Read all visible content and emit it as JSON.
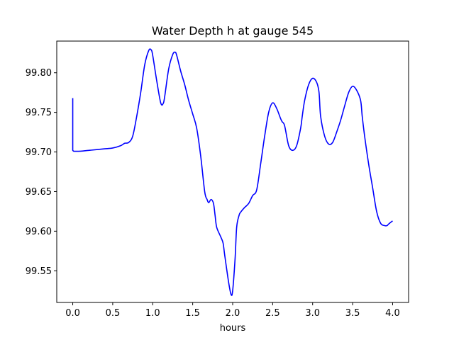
{
  "chart_data": {
    "type": "line",
    "title": "Water Depth h at gauge 545",
    "xlabel": "hours",
    "ylabel": "",
    "xlim": [
      -0.2,
      4.2
    ],
    "ylim": [
      99.51,
      99.84
    ],
    "x_ticks": [
      0.0,
      0.5,
      1.0,
      1.5,
      2.0,
      2.5,
      3.0,
      3.5,
      4.0
    ],
    "x_tick_labels": [
      "0.0",
      "0.5",
      "1.0",
      "1.5",
      "2.0",
      "2.5",
      "3.0",
      "3.5",
      "4.0"
    ],
    "y_ticks": [
      99.55,
      99.6,
      99.65,
      99.7,
      99.75,
      99.8
    ],
    "y_tick_labels": [
      "99.55",
      "99.60",
      "99.65",
      "99.70",
      "99.75",
      "99.80"
    ],
    "grid": false,
    "series": [
      {
        "color": "#0000ff",
        "x": [
          0.0,
          0.0,
          0.01,
          0.1,
          0.2,
          0.3,
          0.4,
          0.5,
          0.6,
          0.65,
          0.7,
          0.75,
          0.8,
          0.85,
          0.9,
          0.95,
          0.98,
          1.0,
          1.05,
          1.1,
          1.13,
          1.15,
          1.2,
          1.25,
          1.28,
          1.3,
          1.35,
          1.4,
          1.45,
          1.5,
          1.55,
          1.6,
          1.65,
          1.68,
          1.7,
          1.73,
          1.76,
          1.78,
          1.8,
          1.85,
          1.88,
          1.9,
          1.95,
          1.98,
          2.0,
          2.03,
          2.05,
          2.08,
          2.1,
          2.15,
          2.2,
          2.25,
          2.3,
          2.35,
          2.4,
          2.45,
          2.5,
          2.55,
          2.6,
          2.62,
          2.65,
          2.7,
          2.75,
          2.8,
          2.85,
          2.87,
          2.9,
          2.95,
          3.0,
          3.05,
          3.08,
          3.1,
          3.15,
          3.2,
          3.25,
          3.3,
          3.35,
          3.4,
          3.45,
          3.5,
          3.55,
          3.6,
          3.62,
          3.65,
          3.7,
          3.75,
          3.8,
          3.85,
          3.9,
          3.93,
          3.95,
          4.0
        ],
        "y": [
          99.768,
          99.702,
          99.701,
          99.701,
          99.702,
          99.703,
          99.704,
          99.705,
          99.708,
          99.711,
          99.712,
          99.72,
          99.745,
          99.775,
          99.81,
          99.828,
          99.829,
          99.822,
          99.79,
          99.762,
          99.761,
          99.77,
          99.805,
          99.823,
          99.826,
          99.822,
          99.802,
          99.785,
          99.765,
          99.748,
          99.73,
          99.695,
          99.65,
          99.64,
          99.636,
          99.64,
          99.635,
          99.62,
          99.605,
          99.593,
          99.585,
          99.57,
          99.535,
          99.52,
          99.525,
          99.565,
          99.605,
          99.62,
          99.624,
          99.63,
          99.635,
          99.645,
          99.652,
          99.685,
          99.72,
          99.75,
          99.762,
          99.755,
          99.742,
          99.738,
          99.733,
          99.708,
          99.702,
          99.708,
          99.73,
          99.745,
          99.765,
          99.785,
          99.793,
          99.788,
          99.775,
          99.745,
          99.72,
          99.71,
          99.712,
          99.725,
          99.74,
          99.758,
          99.775,
          99.783,
          99.778,
          99.765,
          99.745,
          99.72,
          99.685,
          99.655,
          99.625,
          99.61,
          99.607,
          99.607,
          99.609,
          99.613
        ]
      }
    ]
  }
}
